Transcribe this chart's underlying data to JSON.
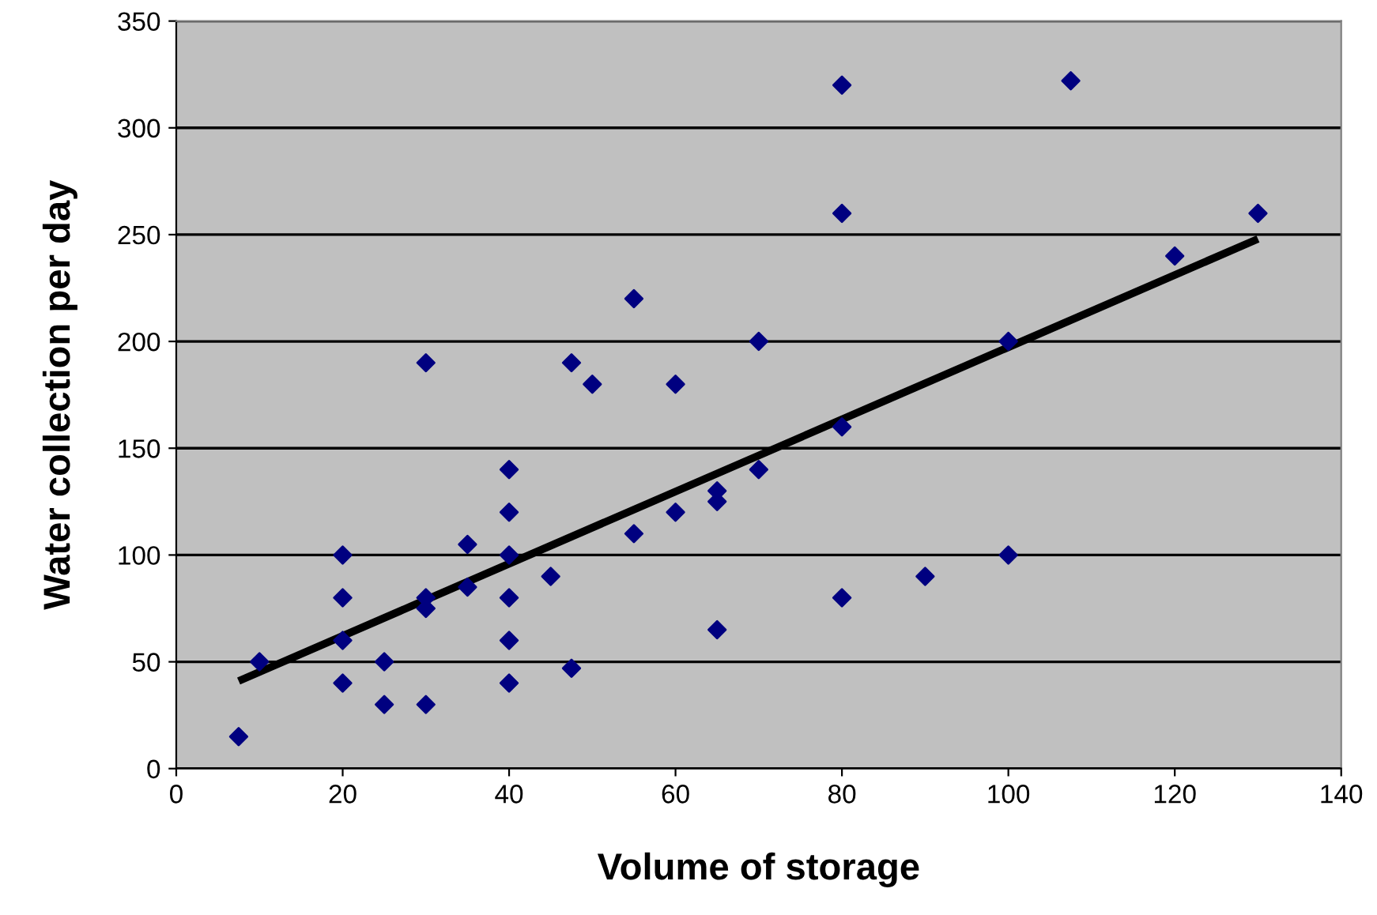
{
  "chart_data": {
    "type": "scatter",
    "xlabel": "Volume of storage",
    "ylabel": "Water collection per day",
    "xlim": [
      0,
      140
    ],
    "ylim": [
      0,
      350
    ],
    "xticks": [
      0,
      20,
      40,
      60,
      80,
      100,
      120,
      140
    ],
    "yticks": [
      0,
      50,
      100,
      150,
      200,
      250,
      300,
      350
    ],
    "grid": "y",
    "legend": false,
    "series": [
      {
        "color": "#000080",
        "marker": "diamond",
        "x": [
          7.5,
          10,
          20,
          20,
          20,
          20,
          25,
          25,
          30,
          30,
          30,
          30,
          35,
          35,
          40,
          40,
          40,
          40,
          40,
          40,
          45,
          47.5,
          47.5,
          50,
          55,
          55,
          60,
          60,
          65,
          65,
          65,
          70,
          70,
          80,
          80,
          80,
          80,
          90,
          100,
          100,
          107.5,
          120,
          130
        ],
        "values": [
          15,
          50,
          100,
          80,
          60,
          40,
          50,
          30,
          190,
          80,
          75,
          30,
          105,
          85,
          140,
          120,
          100,
          80,
          60,
          40,
          90,
          190,
          47,
          180,
          220,
          110,
          180,
          120,
          130,
          125,
          65,
          200,
          140,
          320,
          260,
          160,
          80,
          90,
          200,
          100,
          322,
          240,
          260
        ]
      },
      {
        "type": "line",
        "color": "#000000",
        "marker": "none",
        "line_style": "solid",
        "x": [
          7.5,
          130
        ],
        "values": [
          41,
          248
        ]
      }
    ]
  }
}
